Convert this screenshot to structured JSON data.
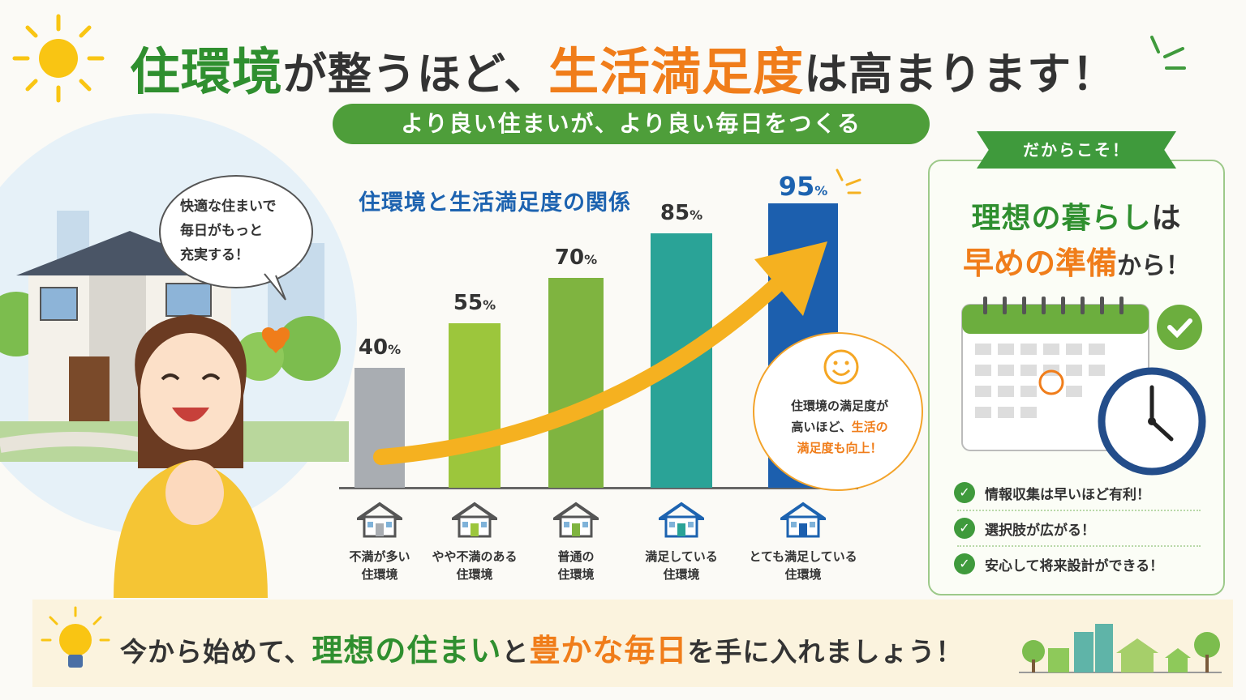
{
  "title": {
    "part1": "住環境",
    "part2": "が整うほど、",
    "part3": "生活満足度",
    "part4": "は高まります！"
  },
  "subtitle": "より良い住まいが、より良い毎日をつくる",
  "speech": {
    "line1": "快適な住まいで",
    "line2": "毎日がもっと",
    "line3": "充実する！"
  },
  "chart_data": {
    "type": "bar",
    "title": "住環境と生活満足度の関係",
    "categories": [
      [
        "不満が多い",
        "住環境"
      ],
      [
        "やや不満のある",
        "住環境"
      ],
      [
        "普通の",
        "住環境"
      ],
      [
        "満足している",
        "住環境"
      ],
      [
        "とても満足している",
        "住環境"
      ]
    ],
    "values": [
      40,
      55,
      70,
      85,
      95
    ],
    "value_unit": "%",
    "bar_colors": [
      "#a9adb2",
      "#9cc63c",
      "#7fb440",
      "#2aa397",
      "#1c5fae"
    ],
    "ylim": [
      0,
      100
    ],
    "trend_arrow_color": "#f5b120"
  },
  "callout": {
    "line1": "住環境の満足度が",
    "line2a": "高いほど、",
    "line2b": "生活の",
    "line3": "満足度も向上！"
  },
  "panel": {
    "ribbon": "だからこそ！",
    "line1a": "理想の暮らし",
    "line1b": "は",
    "line2a": "早めの準備",
    "line2b": "から！",
    "checks": [
      "情報収集は早いほど有利！",
      "選択肢が広がる！",
      "安心して将来設計ができる！"
    ]
  },
  "banner": {
    "a": "今から始めて、",
    "b": "理想の住まい",
    "c": "と",
    "d": "豊かな毎日",
    "e": "を手に入れましょう！"
  },
  "colors": {
    "green": "#2f8f2f",
    "orange": "#f07d1a",
    "blue": "#1d63b0",
    "ribbon_green": "#3f9a3c"
  }
}
